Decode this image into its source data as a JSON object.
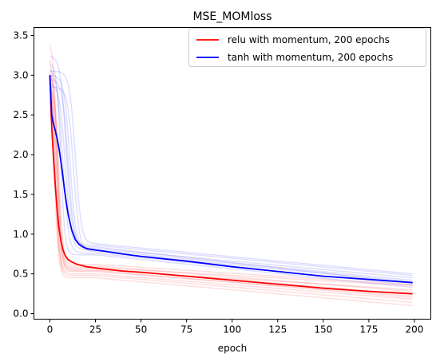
{
  "chart_data": {
    "type": "line",
    "title": "MSE_MOMloss",
    "xlabel": "epoch",
    "ylabel": "",
    "xlim": [
      -8.75,
      209
    ],
    "ylim": [
      -0.07,
      3.6
    ],
    "xticks": [
      0,
      25,
      50,
      75,
      100,
      125,
      150,
      175,
      200
    ],
    "yticks": [
      0.0,
      0.5,
      1.0,
      1.5,
      2.0,
      2.5,
      3.0,
      3.5
    ],
    "xtick_labels": [
      "0",
      "25",
      "50",
      "75",
      "100",
      "125",
      "150",
      "175",
      "200"
    ],
    "ytick_labels": [
      "0.0",
      "0.5",
      "1.0",
      "1.5",
      "2.0",
      "2.5",
      "3.0",
      "3.5"
    ],
    "grid": false,
    "legend_position": "top-right",
    "series": [
      {
        "name": "relu with momentum, 200 epochs",
        "color": "#ff0000",
        "x": [
          0,
          1,
          2,
          3,
          4,
          5,
          6,
          7,
          8,
          9,
          10,
          12,
          15,
          20,
          25,
          30,
          40,
          50,
          75,
          100,
          125,
          150,
          175,
          199
        ],
        "y": [
          3.0,
          2.35,
          1.95,
          1.6,
          1.3,
          1.07,
          0.92,
          0.82,
          0.75,
          0.71,
          0.68,
          0.65,
          0.62,
          0.59,
          0.575,
          0.56,
          0.535,
          0.52,
          0.47,
          0.42,
          0.37,
          0.32,
          0.28,
          0.25
        ]
      },
      {
        "name": "tanh with momentum, 200 epochs",
        "color": "#0000ff",
        "x": [
          0,
          1,
          2,
          3,
          4,
          5,
          6,
          7,
          8,
          9,
          10,
          12,
          14,
          16,
          18,
          20,
          22,
          25,
          30,
          40,
          50,
          75,
          100,
          125,
          150,
          175,
          199
        ],
        "y": [
          3.0,
          2.5,
          2.38,
          2.3,
          2.2,
          2.08,
          1.92,
          1.75,
          1.56,
          1.4,
          1.25,
          1.05,
          0.93,
          0.87,
          0.84,
          0.82,
          0.81,
          0.8,
          0.785,
          0.75,
          0.72,
          0.66,
          0.59,
          0.53,
          0.47,
          0.43,
          0.39
        ]
      }
    ],
    "runs": [
      {
        "color": "#ff0000",
        "y0": 3.45,
        "knee": 4,
        "plateau": 0.58,
        "end": 0.35
      },
      {
        "color": "#ff0000",
        "y0": 3.3,
        "knee": 3.5,
        "plateau": 0.55,
        "end": 0.3
      },
      {
        "color": "#ff0000",
        "y0": 3.15,
        "knee": 3,
        "plateau": 0.5,
        "end": 0.18
      },
      {
        "color": "#ff0000",
        "y0": 2.9,
        "knee": 2.5,
        "plateau": 0.45,
        "end": 0.1
      },
      {
        "color": "#ff0000",
        "y0": 2.7,
        "knee": 3,
        "plateau": 0.53,
        "end": 0.22
      },
      {
        "color": "#ff0000",
        "y0": 3.05,
        "knee": 4.5,
        "plateau": 0.6,
        "end": 0.28
      },
      {
        "color": "#ff0000",
        "y0": 2.85,
        "knee": 5,
        "plateau": 0.62,
        "end": 0.36
      },
      {
        "color": "#ff0000",
        "y0": 3.2,
        "knee": 2.8,
        "plateau": 0.48,
        "end": 0.14
      },
      {
        "color": "#ff0000",
        "y0": 2.95,
        "knee": 3.8,
        "plateau": 0.57,
        "end": 0.24
      },
      {
        "color": "#ff0000",
        "y0": 3.1,
        "knee": 4.2,
        "plateau": 0.54,
        "end": 0.2
      },
      {
        "color": "#0000ff",
        "y0": 3.25,
        "knee": 9,
        "plateau": 0.86,
        "end": 0.48
      },
      {
        "color": "#0000ff",
        "y0": 3.1,
        "knee": 7,
        "plateau": 0.76,
        "end": 0.36
      },
      {
        "color": "#0000ff",
        "y0": 2.9,
        "knee": 8.5,
        "plateau": 0.8,
        "end": 0.42
      },
      {
        "color": "#0000ff",
        "y0": 3.0,
        "knee": 11,
        "plateau": 0.82,
        "end": 0.45
      },
      {
        "color": "#0000ff",
        "y0": 2.85,
        "knee": 13,
        "plateau": 0.78,
        "end": 0.4
      },
      {
        "color": "#0000ff",
        "y0": 3.15,
        "knee": 6,
        "plateau": 0.74,
        "end": 0.33
      },
      {
        "color": "#0000ff",
        "y0": 2.95,
        "knee": 10,
        "plateau": 0.84,
        "end": 0.38
      },
      {
        "color": "#0000ff",
        "y0": 3.05,
        "knee": 14,
        "plateau": 0.88,
        "end": 0.5
      }
    ]
  }
}
